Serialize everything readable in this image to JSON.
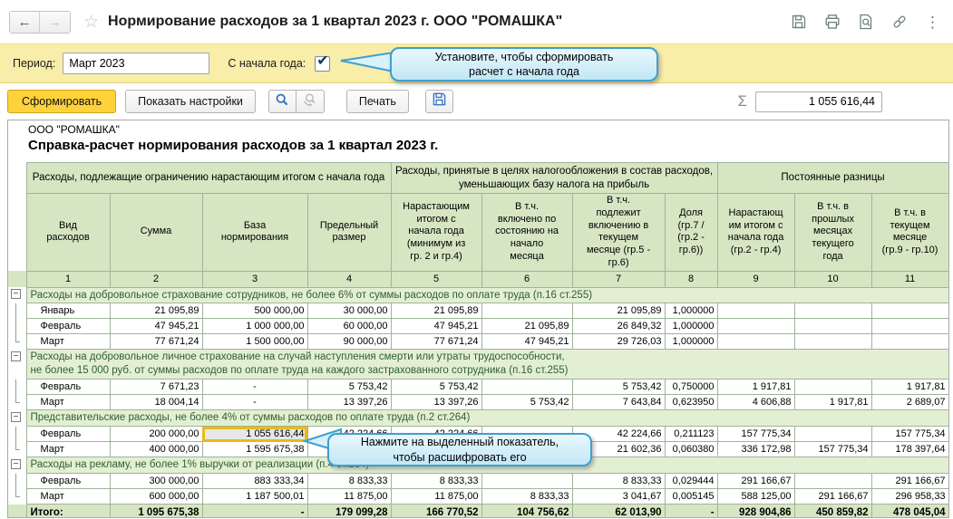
{
  "header": {
    "title": "Нормирование расходов за 1 квартал 2023 г. ООО \"РОМАШКА\"",
    "icons": [
      "save-icon",
      "print-icon",
      "preview-icon",
      "link-icon",
      "more-icon"
    ]
  },
  "glyphs": {
    "back": "←",
    "forward": "→",
    "star": "☆",
    "more": "⋮",
    "sigma": "Σ",
    "check": "✔",
    "collapse": "−",
    "ellipsis": "..."
  },
  "period": {
    "label": "Период:",
    "value": "Март 2023",
    "ytd_label": "С начала года:",
    "ytd_checked": true,
    "tooltip": "Установите, чтобы сформировать\nрасчет с начала года"
  },
  "toolbar": {
    "generate": "Сформировать",
    "settings": "Показать настройки",
    "print": "Печать",
    "sum_value": "1 055 616,44"
  },
  "report": {
    "company": "ООО \"РОМАШКА\"",
    "title": "Справка-расчет нормирования расходов за 1 квартал 2023 г.",
    "tooltip": "Нажмите на выделенный показатель,\nчтобы расшифровать его"
  },
  "table": {
    "groups_header": [
      "Расходы, подлежащие ограничению нарастающим итогом с начала года",
      "Расходы, принятые в целях налогообложения в состав расходов, уменьшающих базу налога на прибыль",
      "Постоянные разницы"
    ],
    "columns": [
      "Вид\nрасходов",
      "Сумма",
      "База\nнормирования",
      "Предельный\nразмер",
      "Нарастающим\nитогом с\nначала года\n(минимум из\nгр. 2 и гр.4)",
      "В т.ч.\nвключено по\nсостоянию на\nначало\nмесяца",
      "В т.ч.\nподлежит\nвключению в\nтекущем\nмесяце (гр.5 -\nгр.6)",
      "Доля\n(гр.7 /\n(гр.2 -\nгр.6))",
      "Нарастающ\nим итогом с\nначала года\n(гр.2 - гр.4)",
      "В т.ч. в\nпрошлых\nмесяцах\nтекущего\nгода",
      "В т.ч. в\nтекущем\nмесяце\n(гр.9 - гр.10)"
    ],
    "col_numbers": [
      "1",
      "2",
      "3",
      "4",
      "5",
      "6",
      "7",
      "8",
      "9",
      "10",
      "11"
    ],
    "sections": [
      {
        "title": "Расходы на добровольное страхование сотрудников, не более 6% от суммы расходов по оплате труда (п.16 ст.255)",
        "rows": [
          {
            "cells": [
              "Январь",
              "21 095,89",
              "500 000,00",
              "30 000,00",
              "21 095,89",
              "",
              "21 095,89",
              "1,000000",
              "",
              "",
              ""
            ]
          },
          {
            "cells": [
              "Февраль",
              "47 945,21",
              "1 000 000,00",
              "60 000,00",
              "47 945,21",
              "21 095,89",
              "26 849,32",
              "1,000000",
              "",
              "",
              ""
            ]
          },
          {
            "cells": [
              "Март",
              "77 671,24",
              "1 500 000,00",
              "90 000,00",
              "77 671,24",
              "47 945,21",
              "29 726,03",
              "1,000000",
              "",
              "",
              ""
            ]
          }
        ]
      },
      {
        "title": "Расходы на добровольное личное страхование на случай наступления смерти или утраты трудоспособности,\nне более 15 000 руб. от суммы расходов по оплате труда на каждого застрахованного сотрудника (п.16 ст.255)",
        "rows": [
          {
            "cells": [
              "Февраль",
              "7 671,23",
              "-",
              "5 753,42",
              "5 753,42",
              "",
              "5 753,42",
              "0,750000",
              "1 917,81",
              "",
              "1 917,81"
            ]
          },
          {
            "cells": [
              "Март",
              "18 004,14",
              "-",
              "13 397,26",
              "13 397,26",
              "5 753,42",
              "7 643,84",
              "0,623950",
              "4 606,88",
              "1 917,81",
              "2 689,07"
            ]
          }
        ]
      },
      {
        "title": "Представительские расходы, не более 4% от суммы расходов по оплате труда (п.2 ст.264)",
        "rows": [
          {
            "cells": [
              "Февраль",
              "200 000,00",
              "1 055 616,44",
              "42 224,66",
              "42 224,66",
              "",
              "42 224,66",
              "0,211123",
              "157 775,34",
              "",
              "157 775,34"
            ],
            "highlight": 2
          },
          {
            "cells": [
              "Март",
              "400 000,00",
              "1 595 675,38",
              "",
              "",
              "42 224,66",
              "21 602,36",
              "0,060380",
              "336 172,98",
              "157 775,34",
              "178 397,64"
            ]
          }
        ]
      },
      {
        "title": "Расходы на рекламу, не более 1% выручки от реализации (п.4 ст.264)",
        "rows": [
          {
            "cells": [
              "Февраль",
              "300 000,00",
              "883 333,34",
              "8 833,33",
              "8 833,33",
              "",
              "8 833,33",
              "0,029444",
              "291 166,67",
              "",
              "291 166,67"
            ]
          },
          {
            "cells": [
              "Март",
              "600 000,00",
              "1 187 500,01",
              "11 875,00",
              "11 875,00",
              "8 833,33",
              "3 041,67",
              "0,005145",
              "588 125,00",
              "291 166,67",
              "296 958,33"
            ]
          }
        ]
      }
    ],
    "totals": [
      "Итого:",
      "1 095 675,38",
      "-",
      "179 099,28",
      "166 770,52",
      "104 756,62",
      "62 013,90",
      "-",
      "928 904,86",
      "450 859,82",
      "478 045,04"
    ]
  },
  "colors": {
    "accent_yellow": "#ffd23b",
    "band": "#f8eda9",
    "header_green": "#d6e6c3",
    "section_green": "#e3efd3",
    "grid": "#9fb49b",
    "callout_border": "#3f9fce",
    "highlight_border": "#e9bb17"
  }
}
